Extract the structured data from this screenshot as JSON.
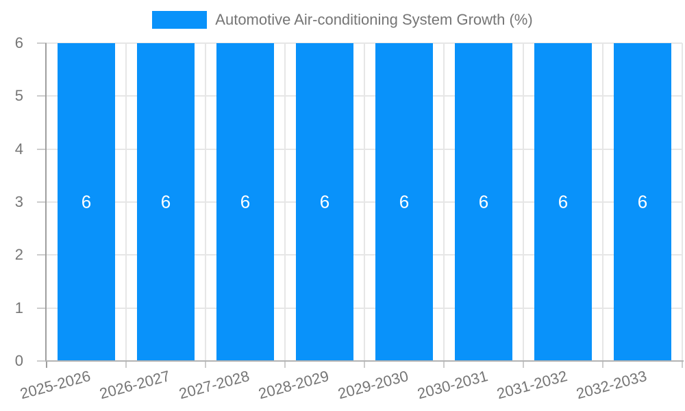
{
  "chart_data": {
    "type": "bar",
    "title": "Automotive Air-conditioning System Growth (%)",
    "legend": {
      "position": "top",
      "label": "Automotive Air-conditioning System Growth (%)"
    },
    "categories": [
      "2025-2026",
      "2026-2027",
      "2027-2028",
      "2028-2029",
      "2029-2030",
      "2030-2031",
      "2031-2032",
      "2032-2033"
    ],
    "series": [
      {
        "name": "Automotive Air-conditioning System Growth (%)",
        "values": [
          6,
          6,
          6,
          6,
          6,
          6,
          6,
          6
        ]
      }
    ],
    "bar_value_labels": [
      "6",
      "6",
      "6",
      "6",
      "6",
      "6",
      "6",
      "6"
    ],
    "xlabel": "",
    "ylabel": "",
    "ylim": [
      0,
      6
    ],
    "yticks": [
      0,
      1,
      2,
      3,
      4,
      5,
      6
    ],
    "grid": true,
    "x_label_rotation_deg": -15,
    "colors": {
      "bar": "#0992fa",
      "bar_label_text": "#ffffff",
      "axis_text": "#757575",
      "grid_line": "#e6e6e6",
      "axis_line": "#9e9e9e",
      "baseline": "#b3b3b3",
      "tick": "#cccccc"
    }
  }
}
